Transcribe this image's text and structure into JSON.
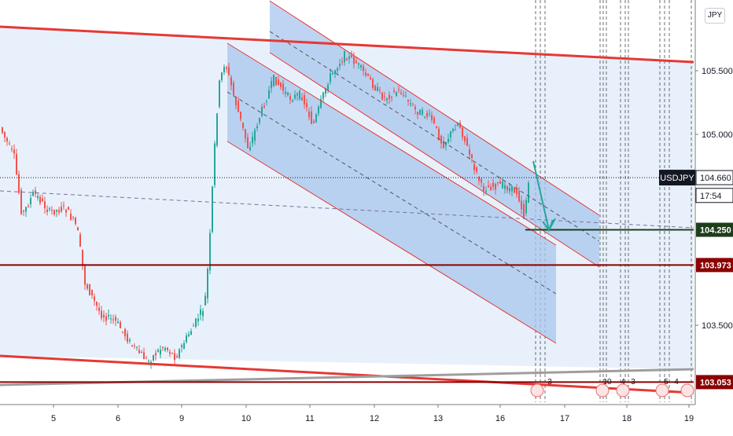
{
  "chart_data": {
    "type": "candlestick",
    "symbol": "USDJPY",
    "currency_badge": "JPY",
    "price_axis": {
      "range": [
        102.9,
        106.0
      ],
      "ticks": [
        {
          "value": 105.5,
          "label": "105.500"
        },
        {
          "value": 105.0,
          "label": "105.000"
        },
        {
          "value": 103.5,
          "label": "103.500"
        }
      ]
    },
    "time_axis": {
      "labels": [
        "5",
        "6",
        "9",
        "10",
        "11",
        "12",
        "13",
        "16",
        "17",
        "18",
        "19"
      ]
    },
    "price_labels": [
      {
        "id": "symbol",
        "text": "USDJPY",
        "price": 104.66,
        "bg": "#131722",
        "fg": "#ffffff"
      },
      {
        "id": "last",
        "text": "104.660",
        "price": 104.66,
        "bg": "#ffffff",
        "fg": "#131722"
      },
      {
        "id": "countdown",
        "text": "17:54",
        "price": 104.52,
        "bg": "#ffffff",
        "fg": "#131722"
      },
      {
        "id": "support",
        "text": "104.250",
        "price": 104.25,
        "bg": "#1e3d1e",
        "fg": "#ffffff"
      },
      {
        "id": "level_red",
        "text": "103.973",
        "price": 103.973,
        "bg": "#8b0000",
        "fg": "#ffffff"
      },
      {
        "id": "level_low",
        "text": "103.053",
        "price": 103.053,
        "bg": "#8b0000",
        "fg": "#ffffff"
      }
    ],
    "levels": [
      {
        "name": "support",
        "price": 104.25,
        "color": "#1e3d1e"
      },
      {
        "name": "resistance-red",
        "price": 103.973,
        "color": "#8b0000"
      },
      {
        "name": "low-red",
        "price": 103.053,
        "color": "#8b0000"
      }
    ],
    "event_markers": [
      {
        "label": "3"
      },
      {
        "label": "10"
      },
      {
        "label": "4"
      },
      {
        "label": "3"
      },
      {
        "label": "5"
      },
      {
        "label": "4"
      }
    ],
    "colors": {
      "up": "#26a69a",
      "down": "#ef5350",
      "channel_fill": "#d6e6f7",
      "inner_channel_fill": "#a9c6ee",
      "trend_red": "#e53935",
      "arrow": "#26a69a"
    }
  }
}
